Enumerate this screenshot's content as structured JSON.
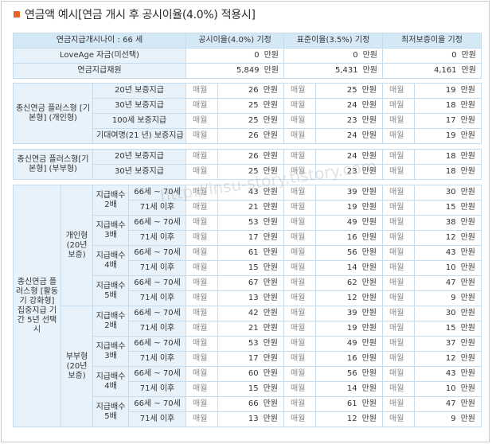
{
  "title": "연금액 예시[연금 개시 후 공시이율(4.0%) 적용시]",
  "watermark": "http://insu-story.tistory.com",
  "unit": "만원",
  "period": "매월",
  "header": {
    "age": "연금지급개시나이 : 66 세",
    "col1": "공시이율(4.0%) 기정",
    "col2": "표준이율(3.5%) 기정",
    "col3": "최저보증이율 기정"
  },
  "summary": [
    {
      "label": "LoveAge 자금(미선택)",
      "v": [
        "0",
        "0",
        "0"
      ]
    },
    {
      "label": "연금지급재원",
      "v": [
        "5,849",
        "5,431",
        "4,161"
      ]
    }
  ],
  "section1": {
    "label": "종신연금 플러스형 [기본형] (개인형)",
    "rows": [
      {
        "label": "20년 보증지급",
        "v": [
          "26",
          "25",
          "19"
        ]
      },
      {
        "label": "30년 보증지급",
        "v": [
          "25",
          "24",
          "18"
        ]
      },
      {
        "label": "100세 보증지급",
        "v": [
          "25",
          "23",
          "17"
        ]
      },
      {
        "label": "기대여명(21 년) 보증지급",
        "v": [
          "26",
          "24",
          "19"
        ]
      }
    ]
  },
  "section2": {
    "label": "종신연금 플러스형[기본형] (부부형)",
    "rows": [
      {
        "label": "20년 보증지급",
        "v": [
          "26",
          "24",
          "18"
        ]
      },
      {
        "label": "30년 보증지급",
        "v": [
          "25",
          "23",
          "18"
        ]
      }
    ]
  },
  "section3": {
    "label": "종신연금 플러스형 [활동기 강화형] 집중지급 기간 5년 선택시",
    "groups": [
      {
        "label": "개인형 (20년 보증)",
        "multipliers": [
          {
            "label": "지급배수 2배",
            "rows": [
              {
                "label": "66세 ~ 70세",
                "v": [
                  "43",
                  "39",
                  "30"
                ]
              },
              {
                "label": "71세 이후",
                "v": [
                  "21",
                  "19",
                  "15"
                ]
              }
            ]
          },
          {
            "label": "지급배수 3배",
            "rows": [
              {
                "label": "66세 ~ 70세",
                "v": [
                  "53",
                  "49",
                  "38"
                ]
              },
              {
                "label": "71세 이후",
                "v": [
                  "17",
                  "16",
                  "12"
                ]
              }
            ]
          },
          {
            "label": "지급배수 4배",
            "rows": [
              {
                "label": "66세 ~ 70세",
                "v": [
                  "61",
                  "56",
                  "43"
                ]
              },
              {
                "label": "71세 이후",
                "v": [
                  "15",
                  "14",
                  "10"
                ]
              }
            ]
          },
          {
            "label": "지급배수 5배",
            "rows": [
              {
                "label": "66세 ~ 70세",
                "v": [
                  "67",
                  "62",
                  "47"
                ]
              },
              {
                "label": "71세 이후",
                "v": [
                  "13",
                  "12",
                  "9"
                ]
              }
            ]
          }
        ]
      },
      {
        "label": "부부형 (20년 보증)",
        "multipliers": [
          {
            "label": "지급배수 2배",
            "rows": [
              {
                "label": "66세 ~ 70세",
                "v": [
                  "42",
                  "39",
                  "30"
                ]
              },
              {
                "label": "71세 이후",
                "v": [
                  "21",
                  "19",
                  "15"
                ]
              }
            ]
          },
          {
            "label": "지급배수 3배",
            "rows": [
              {
                "label": "66세 ~ 70세",
                "v": [
                  "53",
                  "49",
                  "37"
                ]
              },
              {
                "label": "71세 이후",
                "v": [
                  "17",
                  "16",
                  "12"
                ]
              }
            ]
          },
          {
            "label": "지급배수 4배",
            "rows": [
              {
                "label": "66세 ~ 70세",
                "v": [
                  "60",
                  "56",
                  "43"
                ]
              },
              {
                "label": "71세 이후",
                "v": [
                  "15",
                  "14",
                  "10"
                ]
              }
            ]
          },
          {
            "label": "지급배수 5배",
            "rows": [
              {
                "label": "66세 ~ 70세",
                "v": [
                  "66",
                  "61",
                  "47"
                ]
              },
              {
                "label": "71세 이후",
                "v": [
                  "13",
                  "12",
                  "9"
                ]
              }
            ]
          }
        ]
      }
    ]
  }
}
